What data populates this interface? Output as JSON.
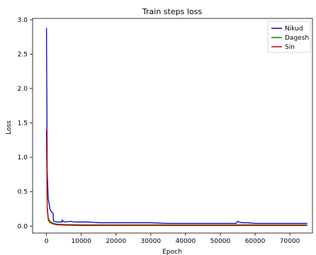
{
  "chart_data": {
    "type": "line",
    "title": "Train steps loss",
    "xlabel": "Epoch",
    "ylabel": "Loss",
    "xlim": [
      -4000,
      76500
    ],
    "ylim": [
      -0.1,
      3.02
    ],
    "xticks": [
      0,
      10000,
      20000,
      30000,
      40000,
      50000,
      60000,
      70000
    ],
    "yticks": [
      0.0,
      0.5,
      1.0,
      1.5,
      2.0,
      2.5,
      3.0
    ],
    "xtick_labels": [
      "0",
      "10000",
      "20000",
      "30000",
      "40000",
      "50000",
      "60000",
      "70000"
    ],
    "ytick_labels": [
      "0.0",
      "0.5",
      "1.0",
      "1.5",
      "2.0",
      "2.5",
      "3.0"
    ],
    "legend_position": "top-right",
    "grid": false,
    "series": [
      {
        "name": "Nikud",
        "color": "#0000cc",
        "x": [
          0,
          200,
          500,
          1000,
          1500,
          1900,
          2000,
          2100,
          3000,
          4400,
          4500,
          5000,
          7000,
          8000,
          10000,
          12000,
          15000,
          20000,
          25000,
          30000,
          35000,
          40000,
          45000,
          50000,
          54500,
          55000,
          56000,
          58000,
          60000,
          65000,
          70000,
          75000
        ],
        "y": [
          2.88,
          0.8,
          0.4,
          0.25,
          0.2,
          0.19,
          0.08,
          0.07,
          0.06,
          0.06,
          0.09,
          0.06,
          0.07,
          0.06,
          0.06,
          0.06,
          0.05,
          0.05,
          0.05,
          0.05,
          0.04,
          0.04,
          0.04,
          0.04,
          0.04,
          0.07,
          0.05,
          0.05,
          0.04,
          0.04,
          0.04,
          0.04
        ]
      },
      {
        "name": "Dagesh",
        "color": "#008000",
        "x": [
          0,
          200,
          500,
          1000,
          2000,
          3000,
          5000,
          10000,
          20000,
          30000,
          40000,
          50000,
          60000,
          70000,
          75000
        ],
        "y": [
          1.38,
          0.3,
          0.12,
          0.07,
          0.04,
          0.03,
          0.025,
          0.02,
          0.02,
          0.02,
          0.02,
          0.02,
          0.02,
          0.02,
          0.02
        ]
      },
      {
        "name": "Sin",
        "color": "#d00000",
        "x": [
          0,
          200,
          500,
          1000,
          2000,
          3000,
          5000,
          10000,
          20000,
          30000,
          40000,
          50000,
          60000,
          70000,
          75000
        ],
        "y": [
          1.4,
          0.25,
          0.09,
          0.05,
          0.03,
          0.02,
          0.015,
          0.01,
          0.01,
          0.01,
          0.01,
          0.01,
          0.01,
          0.01,
          0.01
        ]
      }
    ]
  }
}
